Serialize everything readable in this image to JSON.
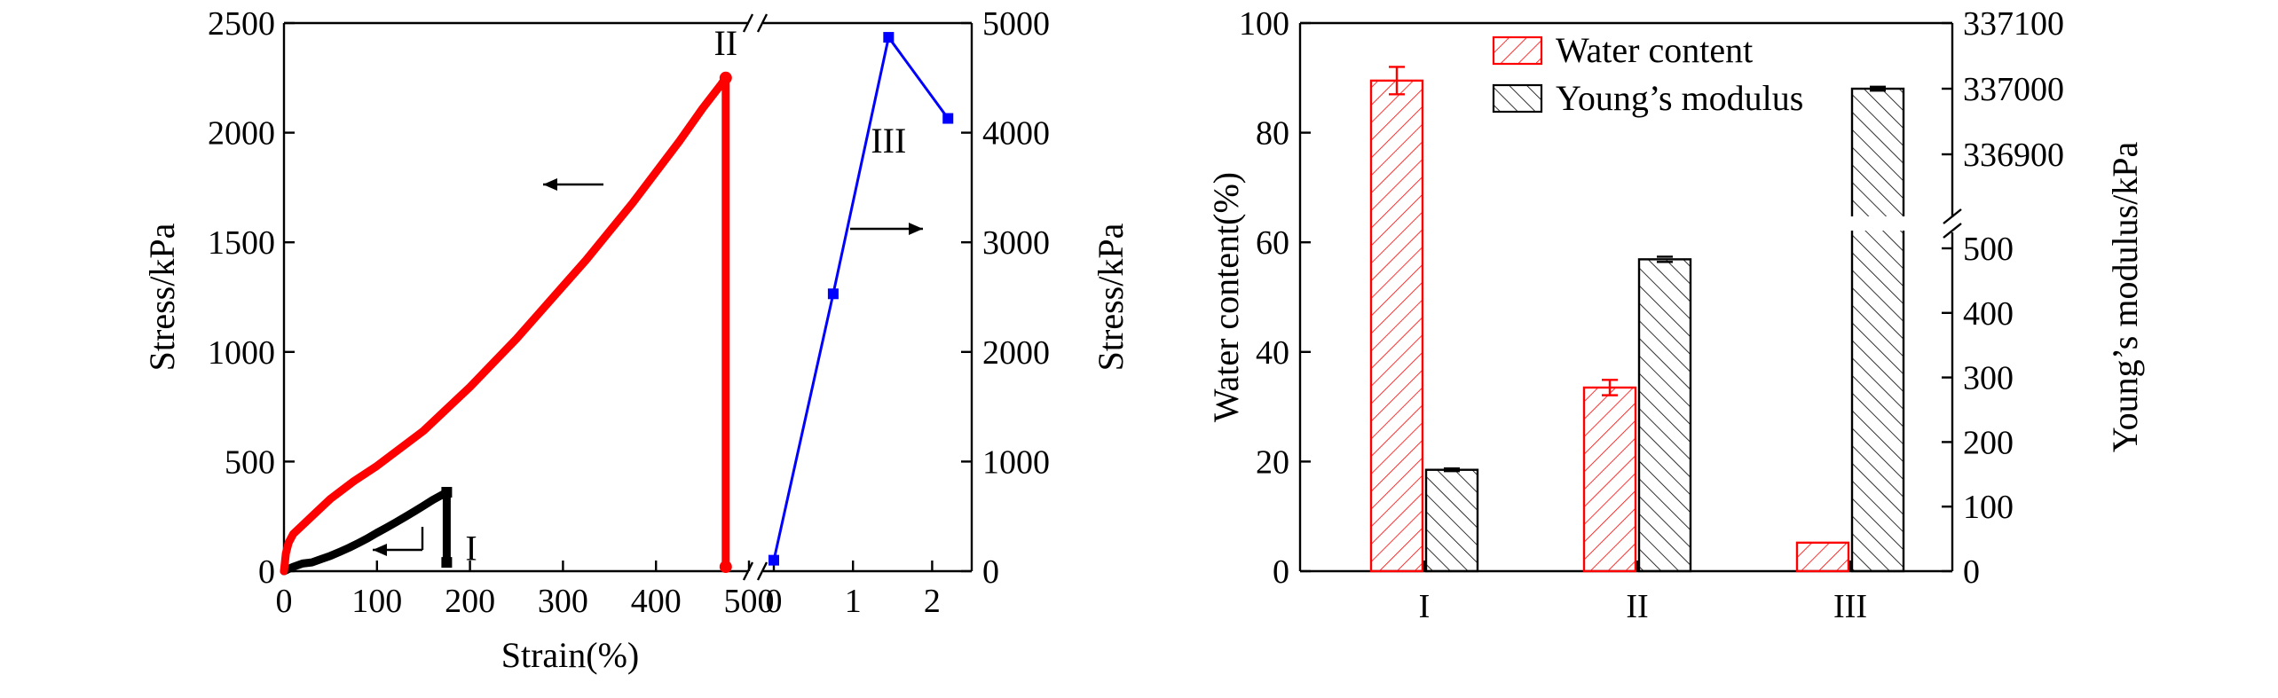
{
  "chart_data": [
    {
      "type": "line",
      "xlabel": "Strain(%)",
      "ylabel_left": "Stress/kPa",
      "ylabel_right": "Stress/kPa",
      "left_panel": {
        "xlim": [
          0,
          500
        ],
        "ylim": [
          0,
          2500
        ],
        "xticks": [
          "0",
          "100",
          "200",
          "300",
          "400",
          "500"
        ],
        "yticks": [
          "0",
          "500",
          "1000",
          "1500",
          "2000",
          "2500"
        ]
      },
      "right_panel": {
        "xlim": [
          0,
          2.5
        ],
        "ylim": [
          0,
          5000
        ],
        "xticks": [
          "0",
          "1",
          "2"
        ],
        "yticks": [
          "0",
          "1000",
          "2000",
          "3000",
          "4000",
          "5000"
        ]
      },
      "series": [
        {
          "name": "I",
          "color": "#000000",
          "axis": "left",
          "points": [
            [
              0,
              0
            ],
            [
              10,
              20
            ],
            [
              20,
              35
            ],
            [
              30,
              40
            ],
            [
              40,
              55
            ],
            [
              50,
              70
            ],
            [
              60,
              88
            ],
            [
              70,
              107
            ],
            [
              80,
              128
            ],
            [
              90,
              150
            ],
            [
              100,
              175
            ],
            [
              110,
              198
            ],
            [
              120,
              222
            ],
            [
              130,
              247
            ],
            [
              140,
              272
            ],
            [
              150,
              298
            ],
            [
              160,
              325
            ],
            [
              170,
              348
            ],
            [
              175,
              360
            ],
            [
              175,
              40
            ]
          ]
        },
        {
          "name": "II",
          "color": "#ff0000",
          "axis": "left",
          "points": [
            [
              0,
              0
            ],
            [
              2,
              80
            ],
            [
              5,
              130
            ],
            [
              10,
              170
            ],
            [
              20,
              210
            ],
            [
              30,
              250
            ],
            [
              40,
              290
            ],
            [
              50,
              330
            ],
            [
              75,
              410
            ],
            [
              100,
              480
            ],
            [
              125,
              560
            ],
            [
              150,
              640
            ],
            [
              175,
              740
            ],
            [
              200,
              840
            ],
            [
              225,
              950
            ],
            [
              250,
              1060
            ],
            [
              275,
              1180
            ],
            [
              300,
              1300
            ],
            [
              325,
              1420
            ],
            [
              350,
              1550
            ],
            [
              375,
              1680
            ],
            [
              400,
              1820
            ],
            [
              425,
              1960
            ],
            [
              450,
              2110
            ],
            [
              470,
              2220
            ],
            [
              475,
              2250
            ],
            [
              475,
              20
            ]
          ]
        },
        {
          "name": "III",
          "color": "#0000ff",
          "axis": "right",
          "points": [
            [
              0,
              100
            ],
            [
              0.75,
              2530
            ],
            [
              1.45,
              4870
            ],
            [
              2.2,
              4130
            ]
          ]
        }
      ],
      "annotations": [
        "I",
        "II",
        "III"
      ]
    },
    {
      "type": "bar",
      "categories": [
        "I",
        "II",
        "III"
      ],
      "ylabel_left": "Water content(%)",
      "ylabel_right": "Young’s modulus/kPa",
      "ylim_left": [
        0,
        100
      ],
      "yticks_left": [
        "0",
        "20",
        "40",
        "60",
        "80",
        "100"
      ],
      "yticks_right_lower": [
        "0",
        "100",
        "200",
        "300",
        "400",
        "500"
      ],
      "yticks_right_upper": [
        "336900",
        "337000",
        "337100"
      ],
      "series": [
        {
          "name": "Water content",
          "color": "#ff0000",
          "values": [
            89.5,
            33.5,
            5.2
          ],
          "errors": [
            2.5,
            1.4,
            0
          ]
        },
        {
          "name": "Young’s modulus",
          "color": "#000000",
          "values": [
            157,
            483,
            337000
          ],
          "errors": [
            2,
            4,
            3
          ]
        }
      ]
    }
  ]
}
